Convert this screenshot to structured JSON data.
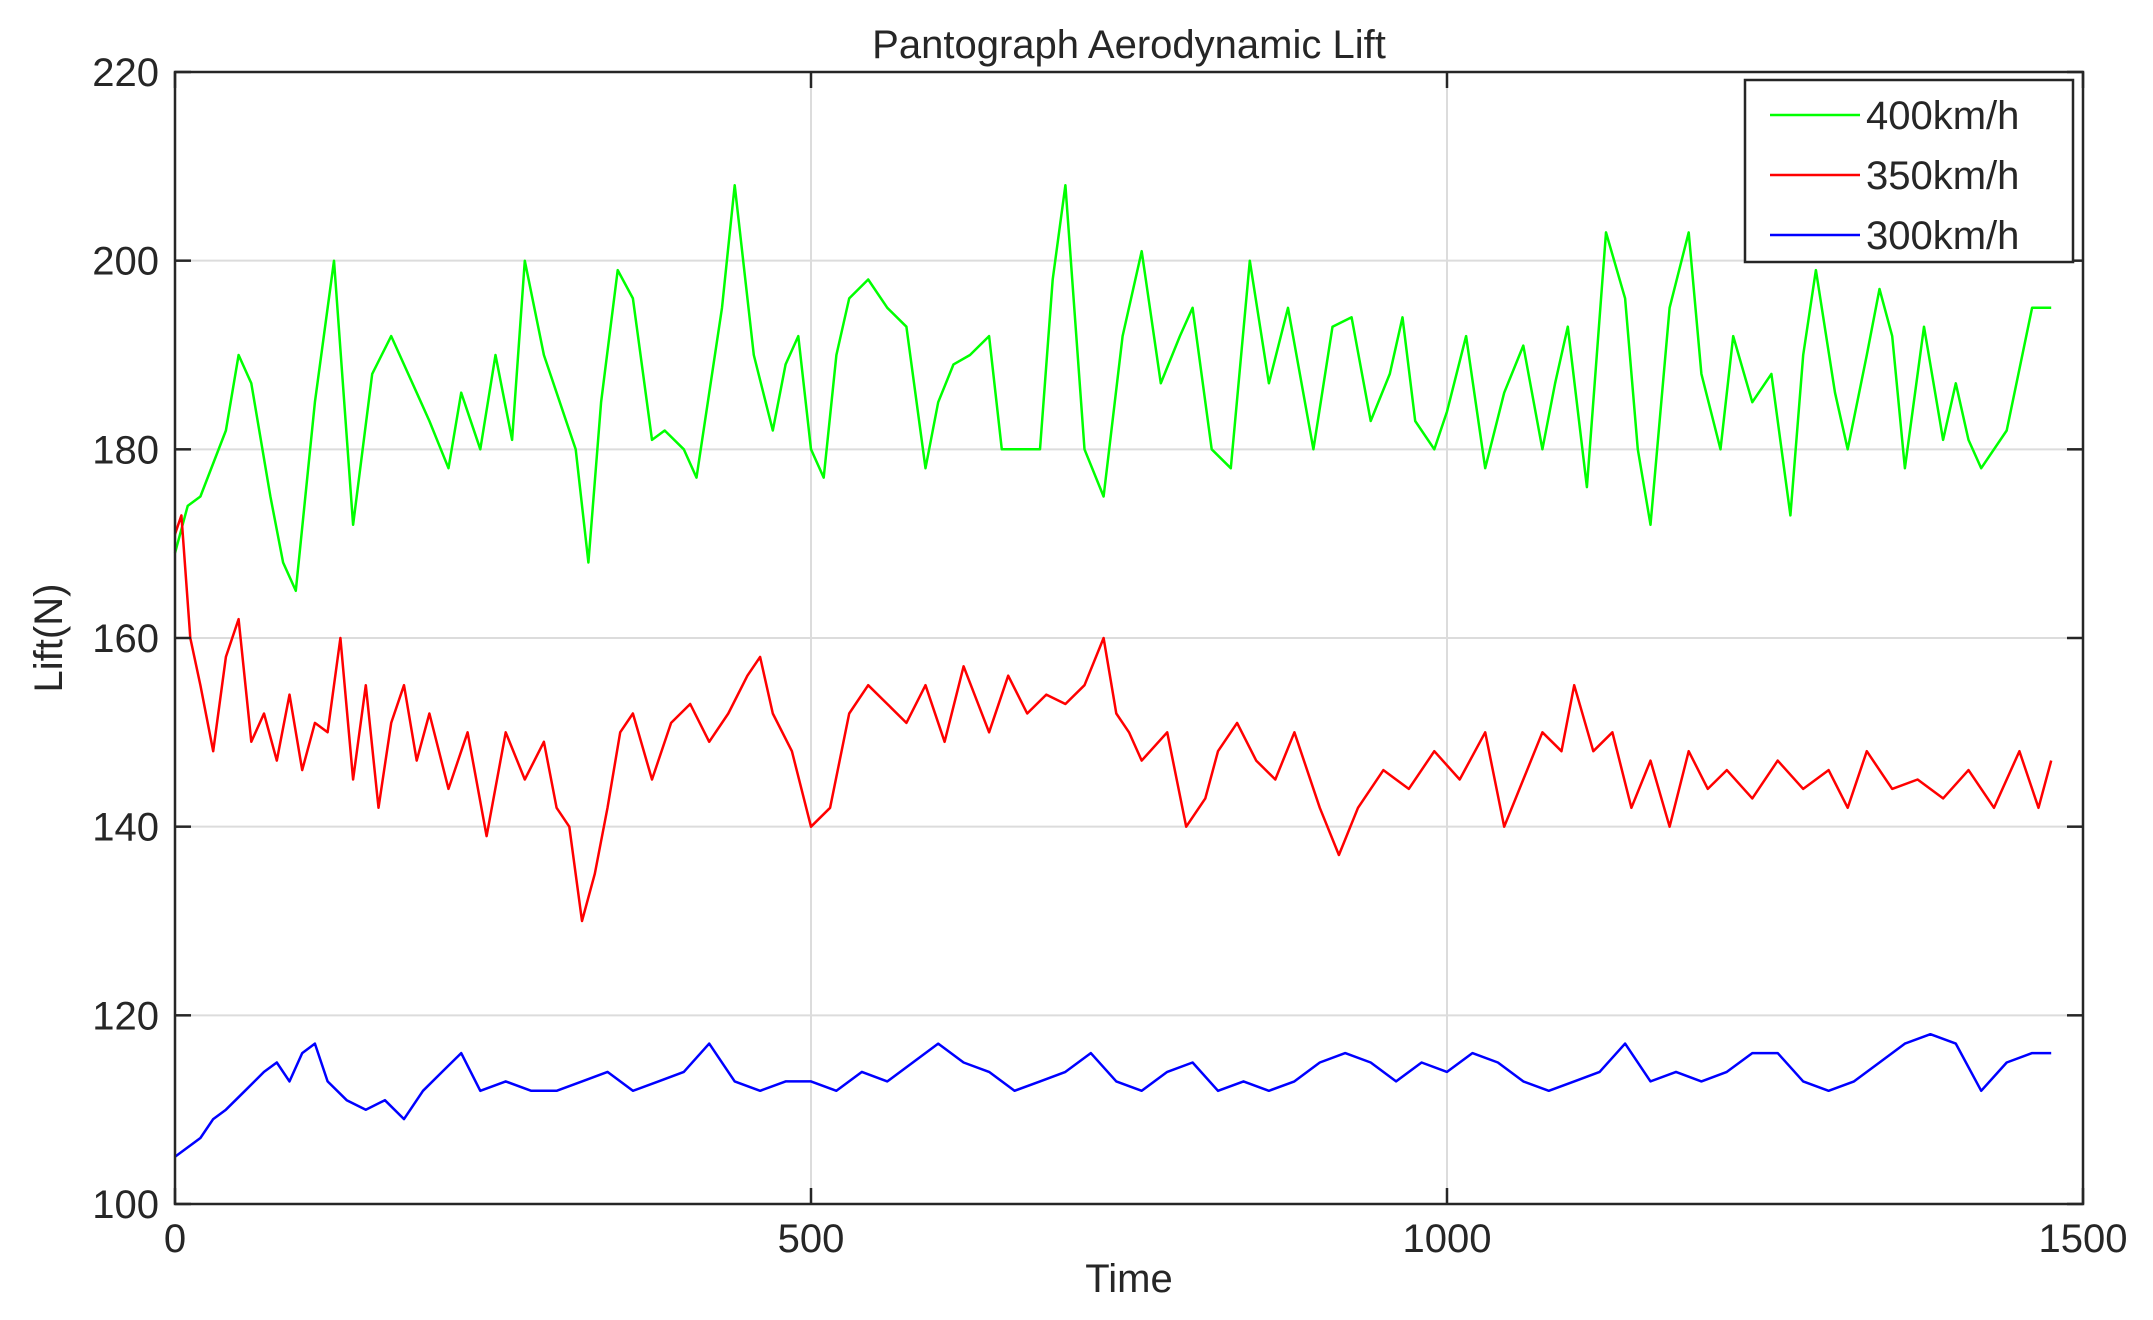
{
  "chart_data": {
    "type": "line",
    "title": "Pantograph Aerodynamic Lift",
    "xlabel": "Time",
    "ylabel": "Lift(N)",
    "xlim": [
      0,
      1500
    ],
    "ylim": [
      100,
      220
    ],
    "xticks": [
      0,
      500,
      1000,
      1500
    ],
    "xtick_labels": [
      "0",
      "500",
      "1000",
      "1500"
    ],
    "yticks": [
      100,
      120,
      140,
      160,
      180,
      200,
      220
    ],
    "ytick_labels": [
      "100",
      "120",
      "140",
      "160",
      "180",
      "200",
      "220"
    ],
    "grid": true,
    "legend_position": "top-right",
    "series": [
      {
        "name": "400km/h",
        "color": "#00ff00",
        "x": [
          0,
          10,
          20,
          40,
          50,
          60,
          75,
          85,
          95,
          110,
          125,
          140,
          155,
          170,
          190,
          200,
          215,
          225,
          240,
          252,
          265,
          275,
          290,
          300,
          315,
          325,
          335,
          348,
          360,
          375,
          385,
          400,
          410,
          430,
          440,
          455,
          470,
          480,
          490,
          500,
          510,
          520,
          530,
          545,
          560,
          575,
          590,
          600,
          612,
          625,
          640,
          650,
          665,
          680,
          690,
          700,
          715,
          730,
          745,
          760,
          775,
          790,
          800,
          815,
          830,
          845,
          860,
          875,
          895,
          910,
          925,
          940,
          955,
          965,
          975,
          990,
          1000,
          1015,
          1030,
          1045,
          1060,
          1075,
          1085,
          1095,
          1110,
          1125,
          1140,
          1150,
          1160,
          1175,
          1190,
          1200,
          1215,
          1225,
          1240,
          1255,
          1270,
          1280,
          1290,
          1305,
          1315,
          1330,
          1340,
          1350,
          1360,
          1375,
          1390,
          1400,
          1410,
          1420,
          1440,
          1460,
          1475
        ],
        "values": [
          169,
          174,
          175,
          182,
          190,
          187,
          175,
          168,
          165,
          185,
          200,
          172,
          188,
          192,
          186,
          183,
          178,
          186,
          180,
          190,
          181,
          200,
          190,
          186,
          180,
          168,
          185,
          199,
          196,
          181,
          182,
          180,
          177,
          195,
          208,
          190,
          182,
          189,
          192,
          180,
          177,
          190,
          196,
          198,
          195,
          193,
          178,
          185,
          189,
          190,
          192,
          180,
          180,
          180,
          198,
          208,
          180,
          175,
          192,
          201,
          187,
          192,
          195,
          180,
          178,
          200,
          187,
          195,
          180,
          193,
          194,
          183,
          188,
          194,
          183,
          180,
          184,
          192,
          178,
          186,
          191,
          180,
          187,
          193,
          176,
          203,
          196,
          180,
          172,
          195,
          203,
          188,
          180,
          192,
          185,
          188,
          173,
          190,
          199,
          186,
          180,
          190,
          197,
          192,
          178,
          193,
          181,
          187,
          181,
          178,
          182,
          195,
          195
        ]
      },
      {
        "name": "350km/h",
        "color": "#ff0000",
        "x": [
          0,
          5,
          12,
          20,
          30,
          40,
          50,
          60,
          70,
          80,
          90,
          100,
          110,
          120,
          130,
          140,
          150,
          160,
          170,
          180,
          190,
          200,
          215,
          230,
          245,
          260,
          275,
          290,
          300,
          310,
          320,
          330,
          340,
          350,
          360,
          375,
          390,
          405,
          420,
          435,
          450,
          460,
          470,
          485,
          500,
          515,
          530,
          545,
          560,
          575,
          590,
          605,
          620,
          640,
          655,
          670,
          685,
          700,
          715,
          730,
          740,
          750,
          760,
          780,
          795,
          810,
          820,
          835,
          850,
          865,
          880,
          900,
          915,
          930,
          950,
          970,
          990,
          1010,
          1030,
          1045,
          1060,
          1075,
          1090,
          1100,
          1115,
          1130,
          1145,
          1160,
          1175,
          1190,
          1205,
          1220,
          1240,
          1260,
          1280,
          1300,
          1315,
          1330,
          1350,
          1370,
          1390,
          1410,
          1430,
          1450,
          1465,
          1475
        ],
        "values": [
          171,
          173,
          160,
          155,
          148,
          158,
          162,
          149,
          152,
          147,
          154,
          146,
          151,
          150,
          160,
          145,
          155,
          142,
          151,
          155,
          147,
          152,
          144,
          150,
          139,
          150,
          145,
          149,
          142,
          140,
          130,
          135,
          142,
          150,
          152,
          145,
          151,
          153,
          149,
          152,
          156,
          158,
          152,
          148,
          140,
          142,
          152,
          155,
          153,
          151,
          155,
          149,
          157,
          150,
          156,
          152,
          154,
          153,
          155,
          160,
          152,
          150,
          147,
          150,
          140,
          143,
          148,
          151,
          147,
          145,
          150,
          142,
          137,
          142,
          146,
          144,
          148,
          145,
          150,
          140,
          145,
          150,
          148,
          155,
          148,
          150,
          142,
          147,
          140,
          148,
          144,
          146,
          143,
          147,
          144,
          146,
          142,
          148,
          144,
          145,
          143,
          146,
          142,
          148,
          142,
          147
        ]
      },
      {
        "name": "300km/h",
        "color": "#0000ff",
        "x": [
          0,
          10,
          20,
          30,
          40,
          55,
          70,
          80,
          90,
          100,
          110,
          120,
          135,
          150,
          165,
          180,
          195,
          210,
          225,
          240,
          260,
          280,
          300,
          320,
          340,
          360,
          380,
          400,
          420,
          440,
          460,
          480,
          500,
          520,
          540,
          560,
          580,
          600,
          620,
          640,
          660,
          680,
          700,
          720,
          740,
          760,
          780,
          800,
          820,
          840,
          860,
          880,
          900,
          920,
          940,
          960,
          980,
          1000,
          1020,
          1040,
          1060,
          1080,
          1100,
          1120,
          1140,
          1160,
          1180,
          1200,
          1220,
          1240,
          1260,
          1280,
          1300,
          1320,
          1340,
          1360,
          1380,
          1400,
          1420,
          1440,
          1460,
          1475
        ],
        "values": [
          105,
          106,
          107,
          109,
          110,
          112,
          114,
          115,
          113,
          116,
          117,
          113,
          111,
          110,
          111,
          109,
          112,
          114,
          116,
          112,
          113,
          112,
          112,
          113,
          114,
          112,
          113,
          114,
          117,
          113,
          112,
          113,
          113,
          112,
          114,
          113,
          115,
          117,
          115,
          114,
          112,
          113,
          114,
          116,
          113,
          112,
          114,
          115,
          112,
          113,
          112,
          113,
          115,
          116,
          115,
          113,
          115,
          114,
          116,
          115,
          113,
          112,
          113,
          114,
          117,
          113,
          114,
          113,
          114,
          116,
          116,
          113,
          112,
          113,
          115,
          117,
          118,
          117,
          112,
          115,
          116,
          116
        ]
      }
    ]
  }
}
